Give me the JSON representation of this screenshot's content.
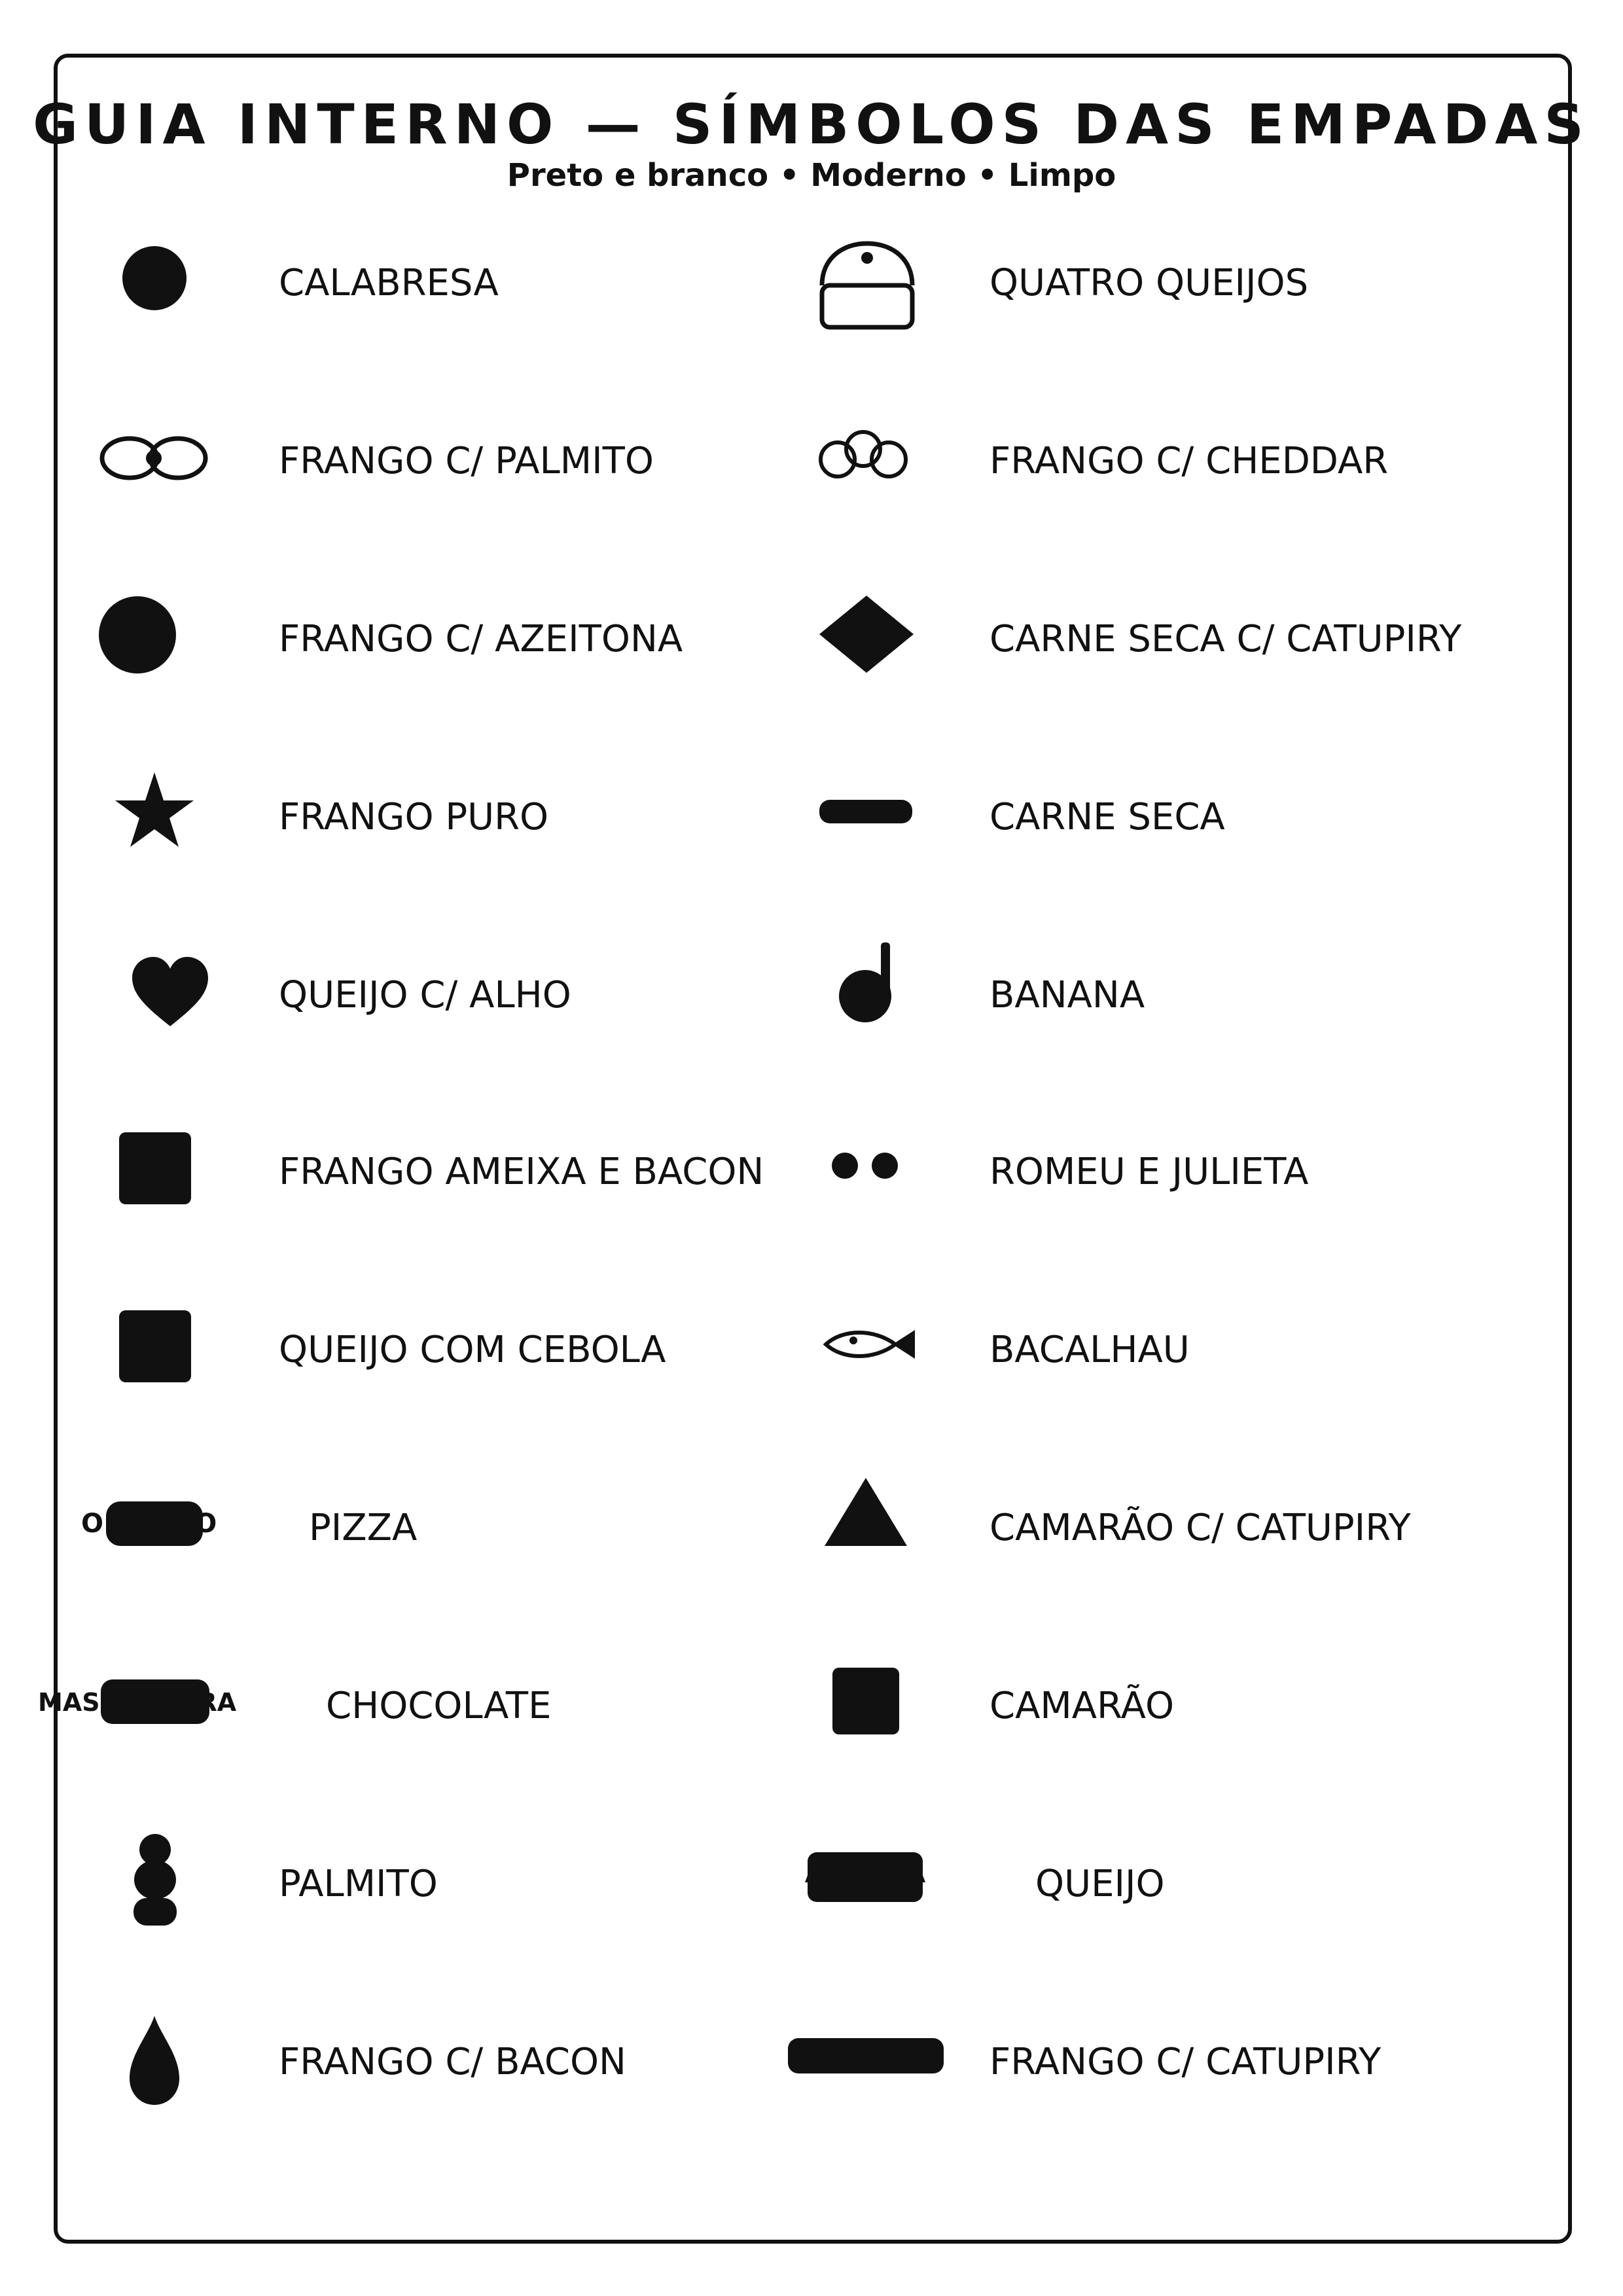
{
  "header": {
    "title": "GUIA INTERNO — SÍMBOLOS DAS EMPADAS",
    "subtitle": "Preto e branco • Moderno • Limpo"
  },
  "colors": {
    "ink": "#111111",
    "paper": "#ffffff"
  },
  "left_column": [
    {
      "label": "CALABRESA",
      "icon": "solid-circle-icon"
    },
    {
      "label": "FRANGO C/ PALMITO",
      "icon": "linked-rings-icon"
    },
    {
      "label": "FRANGO C/ AZEITONA",
      "icon": "large-circle-icon"
    },
    {
      "label": "FRANGO PURO",
      "icon": "star-icon"
    },
    {
      "label": "QUEIJO C/ ALHO",
      "icon": "heart-icon"
    },
    {
      "label": "FRANGO AMEIXA E BACON",
      "icon": "rounded-square-icon"
    },
    {
      "label": "QUEIJO COM CEBOLA",
      "icon": "rounded-square-icon"
    },
    {
      "label": "PIZZA",
      "icon": "pill-word-icon",
      "icon_text": "O          O"
    },
    {
      "label": "CHOCOLATE",
      "icon": "pill-word-icon",
      "icon_text": "MAS         URA"
    },
    {
      "label": "PALMITO",
      "icon": "stacked-balls-icon"
    },
    {
      "label": "FRANGO C/ BACON",
      "icon": "drop-icon"
    }
  ],
  "right_column": [
    {
      "label": "QUATRO QUEIJOS",
      "icon": "lunchbox-icon"
    },
    {
      "label": "FRANGO C/ CHEDDAR",
      "icon": "three-rings-icon"
    },
    {
      "label": "CARNE SECA C/ CATUPIRY",
      "icon": "diamond-icon"
    },
    {
      "label": "CARNE SECA",
      "icon": "bar-icon"
    },
    {
      "label": "BANANA",
      "icon": "music-note-icon"
    },
    {
      "label": "ROMEU E JULIETA",
      "icon": "two-dots-icon"
    },
    {
      "label": "BACALHAU",
      "icon": "fish-icon"
    },
    {
      "label": "CAMARÃO C/ CATUPIRY",
      "icon": "triangle-icon"
    },
    {
      "label": "CAMARÃO",
      "icon": "small-rounded-square-icon"
    },
    {
      "label": "QUEIJO",
      "icon": "wide-block-icon"
    },
    {
      "label": "FRANGO C/ CATUPIRY",
      "icon": "long-bar-icon"
    }
  ]
}
